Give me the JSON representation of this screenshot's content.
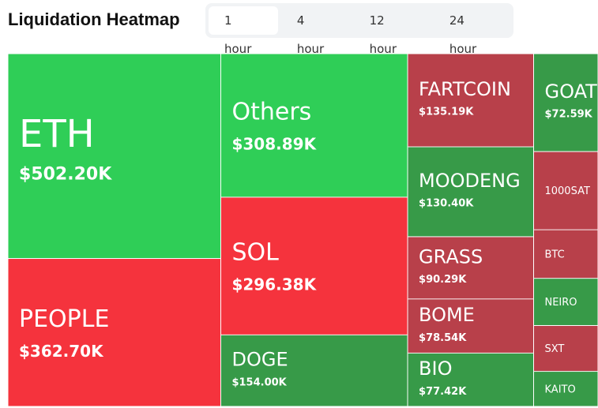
{
  "chart_data": {
    "type": "treemap",
    "title": "Liquidation Heatmap",
    "tabs": [
      "1 hour",
      "4 hour",
      "12 hour",
      "24 hour"
    ],
    "categories": [
      "ETH",
      "PEOPLE",
      "Others",
      "SOL",
      "DOGE",
      "FARTCOIN",
      "MOODENG",
      "GRASS",
      "BOME",
      "BIO",
      "GOAT",
      "1000SAT",
      "BTC",
      "NEIRO",
      "SXT",
      "KAITO"
    ],
    "values": [
      502200,
      362700,
      308890,
      296380,
      154000,
      135190,
      130400,
      90290,
      78540,
      77420,
      72590,
      58000,
      36000,
      35000,
      34000,
      26000
    ],
    "value_labels": [
      "$502.20K",
      "$362.70K",
      "$308.89K",
      "$296.38K",
      "$154.00K",
      "$135.19K",
      "$130.40K",
      "$90.29K",
      "$78.54K",
      "$77.42K",
      "$72.59K",
      null,
      null,
      null,
      null,
      null
    ],
    "colors": [
      "#2fce57",
      "#f5333d",
      "#2fce57",
      "#f5333d",
      "#379a48",
      "#b8404a",
      "#379a48",
      "#b8404a",
      "#b8404a",
      "#379a48",
      "#379a48",
      "#b8404a",
      "#b8404a",
      "#379a48",
      "#b8404a",
      "#379a48"
    ]
  }
}
